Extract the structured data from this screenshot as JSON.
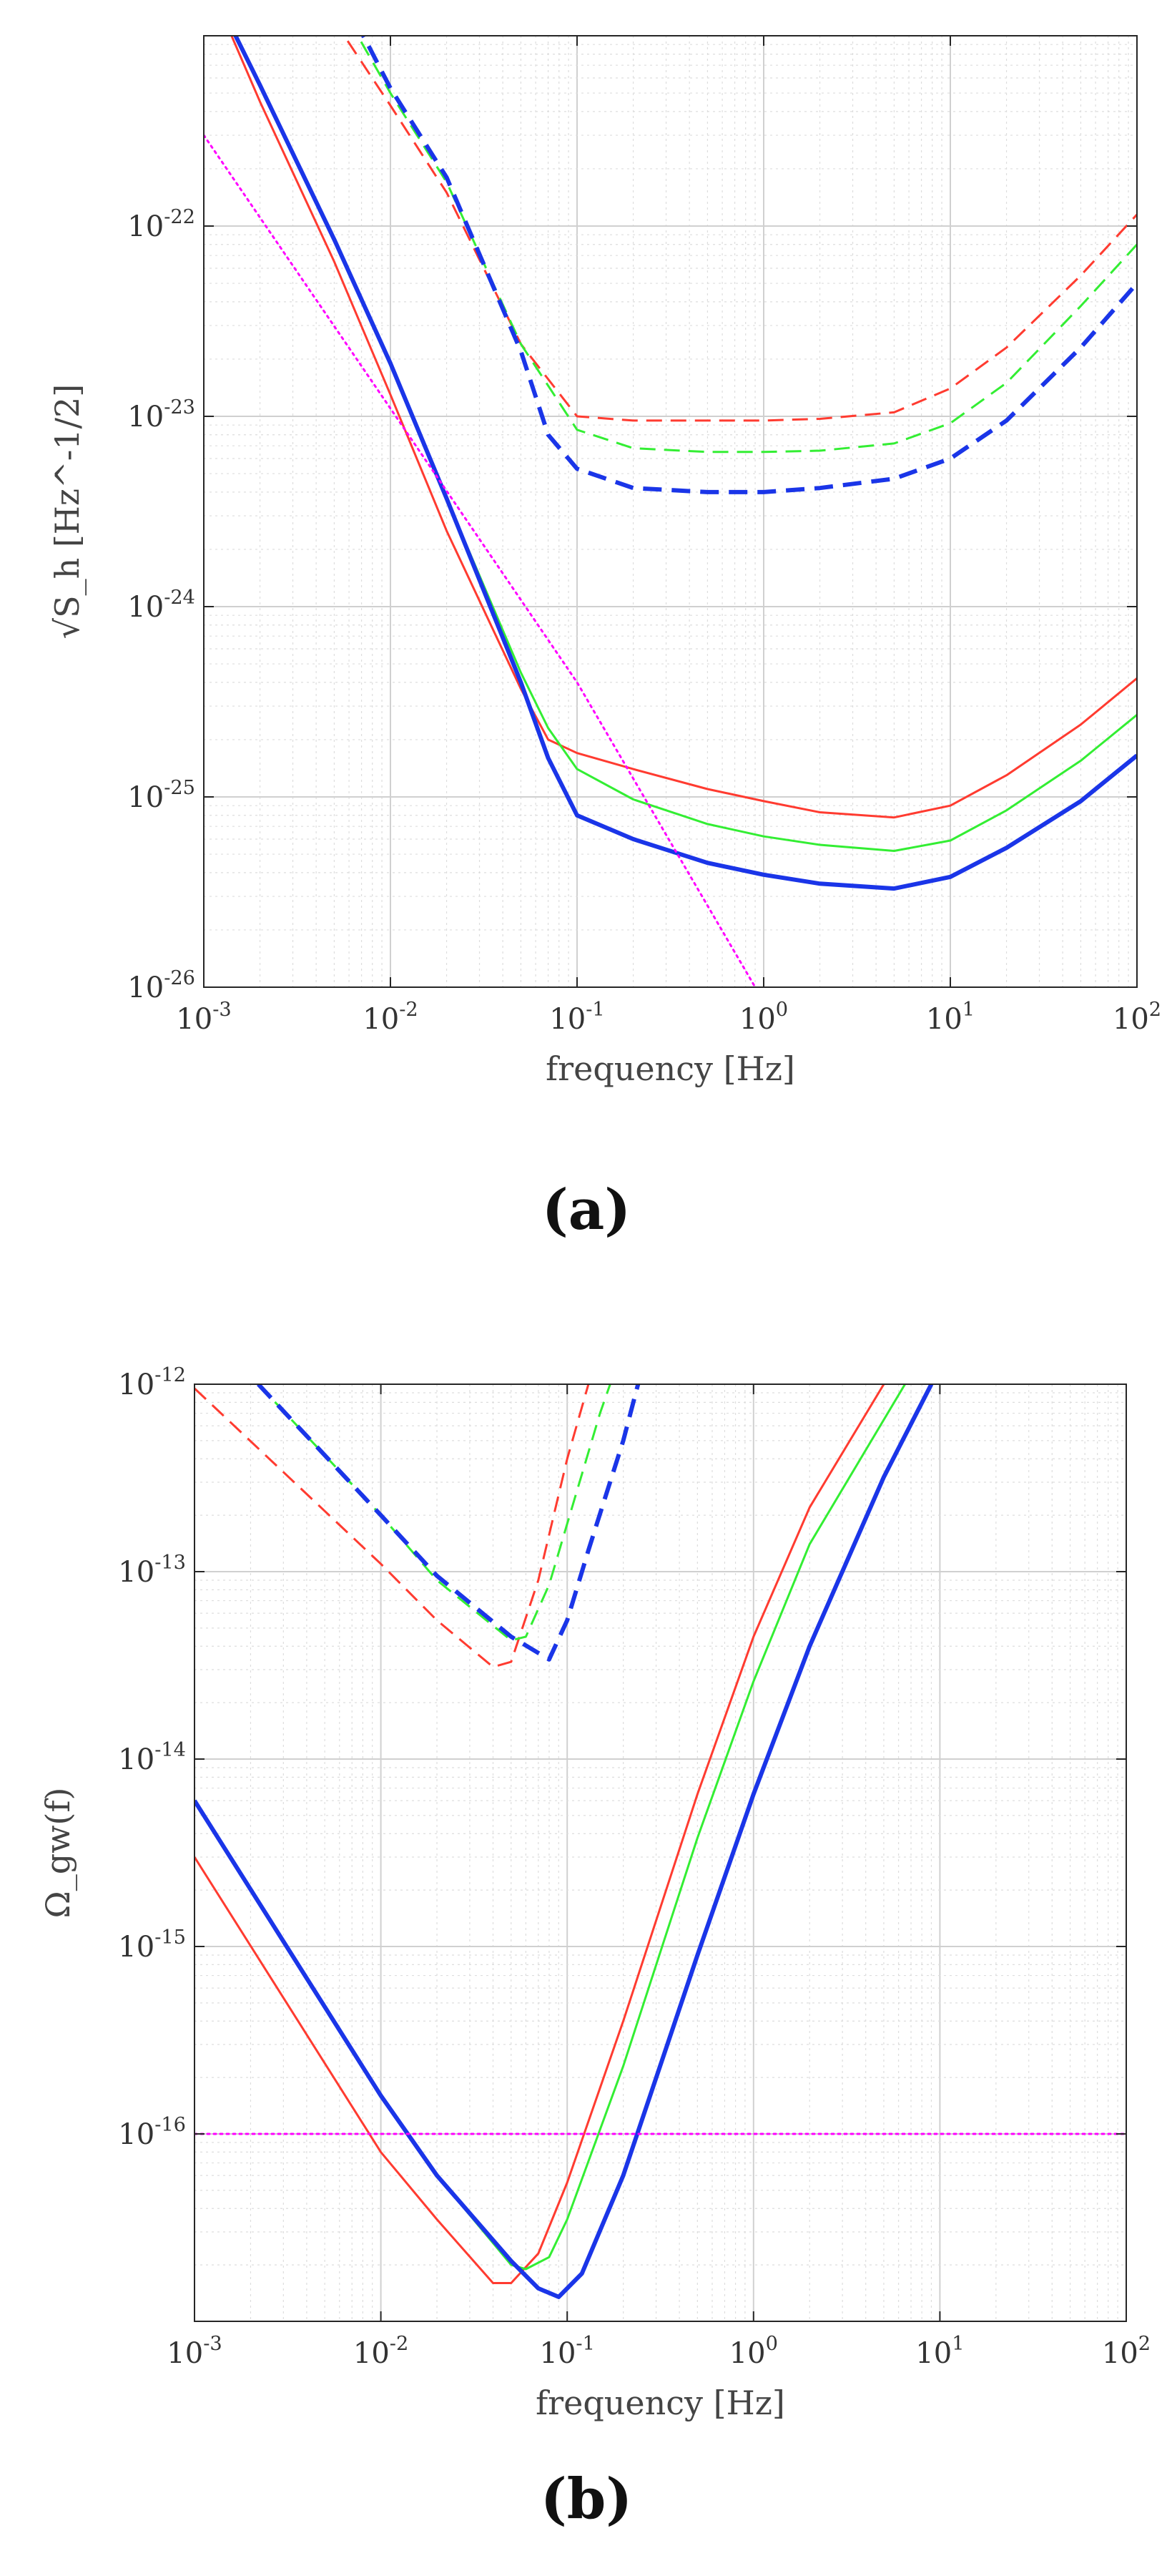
{
  "figure": {
    "panel_labels": [
      "(a)",
      "(b)"
    ]
  },
  "chart_data": [
    {
      "type": "line",
      "panel": "(a)",
      "title": "",
      "xlabel": "frequency [Hz]",
      "ylabel": "√S_h [Hz^-1/2]",
      "xscale": "log",
      "yscale": "log",
      "xlim": [
        0.001,
        100
      ],
      "ylim": [
        1e-26,
        1e-21
      ],
      "grid": true,
      "x_ticks": [
        {
          "base": "10",
          "exp": "-3"
        },
        {
          "base": "10",
          "exp": "-2"
        },
        {
          "base": "10",
          "exp": "-1"
        },
        {
          "base": "10",
          "exp": "0"
        },
        {
          "base": "10",
          "exp": "1"
        },
        {
          "base": "10",
          "exp": "2"
        }
      ],
      "y_ticks": [
        {
          "base": "10",
          "exp": "-26"
        },
        {
          "base": "10",
          "exp": "-25"
        },
        {
          "base": "10",
          "exp": "-24"
        },
        {
          "base": "10",
          "exp": "-23"
        },
        {
          "base": "10",
          "exp": "-22"
        }
      ],
      "series": [
        {
          "name": "red dashed",
          "color": "#ff3b30",
          "style": "dashed",
          "weight": "thin",
          "x": [
            0.005,
            0.01,
            0.02,
            0.05,
            0.1,
            0.2,
            0.5,
            1,
            2,
            5,
            10,
            20,
            50,
            100
          ],
          "y": [
            1.2e-21,
            4.3e-22,
            1.5e-22,
            2.4e-23,
            1e-23,
            9.5e-24,
            9.5e-24,
            9.5e-24,
            9.7e-24,
            1.05e-23,
            1.4e-23,
            2.3e-23,
            5.5e-23,
            1.15e-22
          ]
        },
        {
          "name": "green dashed",
          "color": "#33ee33",
          "style": "dashed",
          "weight": "thin",
          "x": [
            0.006,
            0.01,
            0.02,
            0.05,
            0.1,
            0.2,
            0.5,
            1,
            2,
            5,
            10,
            20,
            50,
            100
          ],
          "y": [
            1.2e-21,
            5e-22,
            1.7e-22,
            2.4e-23,
            8.5e-24,
            6.8e-24,
            6.5e-24,
            6.5e-24,
            6.6e-24,
            7.2e-24,
            9.2e-24,
            1.5e-23,
            3.8e-23,
            8e-23
          ]
        },
        {
          "name": "blue dashed",
          "color": "#1a35e8",
          "style": "dashed",
          "weight": "thick",
          "x": [
            0.0065,
            0.01,
            0.02,
            0.05,
            0.07,
            0.1,
            0.2,
            0.5,
            1,
            2,
            5,
            10,
            20,
            50,
            100
          ],
          "y": [
            1.2e-21,
            5.3e-22,
            1.8e-22,
            2.2e-23,
            8e-24,
            5.3e-24,
            4.2e-24,
            4e-24,
            4e-24,
            4.2e-24,
            4.7e-24,
            6e-24,
            9.5e-24,
            2.3e-23,
            5e-23
          ]
        },
        {
          "name": "red solid",
          "color": "#ff3b30",
          "style": "solid",
          "weight": "thin",
          "x": [
            0.0013,
            0.002,
            0.005,
            0.01,
            0.02,
            0.05,
            0.07,
            0.1,
            0.2,
            0.5,
            1,
            2,
            5,
            10,
            20,
            50,
            100
          ],
          "y": [
            1.2e-21,
            4.5e-22,
            6.5e-23,
            1.3e-23,
            2.5e-24,
            3.7e-25,
            2e-25,
            1.7e-25,
            1.4e-25,
            1.1e-25,
            9.5e-26,
            8.3e-26,
            7.8e-26,
            9e-26,
            1.3e-25,
            2.4e-25,
            4.2e-25
          ]
        },
        {
          "name": "green solid",
          "color": "#33ee33",
          "style": "solid",
          "weight": "thin",
          "x": [
            0.00135,
            0.002,
            0.005,
            0.01,
            0.02,
            0.05,
            0.07,
            0.1,
            0.2,
            0.5,
            1,
            2,
            5,
            10,
            20,
            50,
            100
          ],
          "y": [
            1.2e-21,
            5.5e-22,
            8.5e-23,
            1.9e-23,
            3.7e-24,
            4.5e-25,
            2.3e-25,
            1.4e-25,
            9.7e-26,
            7.2e-26,
            6.2e-26,
            5.6e-26,
            5.2e-26,
            5.9e-26,
            8.5e-26,
            1.55e-25,
            2.7e-25
          ]
        },
        {
          "name": "blue solid",
          "color": "#1a35e8",
          "style": "solid",
          "weight": "thick",
          "x": [
            0.00135,
            0.002,
            0.005,
            0.01,
            0.02,
            0.05,
            0.07,
            0.1,
            0.2,
            0.5,
            1,
            2,
            5,
            10,
            20,
            50,
            100
          ],
          "y": [
            1.2e-21,
            5.5e-22,
            8.5e-23,
            1.9e-23,
            3.7e-24,
            4e-25,
            1.6e-25,
            8e-26,
            6e-26,
            4.5e-26,
            3.9e-26,
            3.5e-26,
            3.3e-26,
            3.8e-26,
            5.4e-26,
            9.5e-26,
            1.65e-25
          ]
        },
        {
          "name": "magenta dotted",
          "color": "#ff00ff",
          "style": "dotted",
          "weight": "thin",
          "x": [
            0.001,
            0.01,
            0.1,
            0.9
          ],
          "y": [
            3e-22,
            1.1e-23,
            4e-25,
            1e-26
          ]
        }
      ]
    },
    {
      "type": "line",
      "panel": "(b)",
      "title": "",
      "xlabel": "frequency [Hz]",
      "ylabel": "Ω_gw(f)",
      "xscale": "log",
      "yscale": "log",
      "xlim": [
        0.001,
        100
      ],
      "ylim": [
        1e-17,
        1e-12
      ],
      "grid": true,
      "x_ticks": [
        {
          "base": "10",
          "exp": "-3"
        },
        {
          "base": "10",
          "exp": "-2"
        },
        {
          "base": "10",
          "exp": "-1"
        },
        {
          "base": "10",
          "exp": "0"
        },
        {
          "base": "10",
          "exp": "1"
        },
        {
          "base": "10",
          "exp": "2"
        }
      ],
      "y_ticks": [
        {
          "base": "10",
          "exp": "-16"
        },
        {
          "base": "10",
          "exp": "-15"
        },
        {
          "base": "10",
          "exp": "-14"
        },
        {
          "base": "10",
          "exp": "-13"
        },
        {
          "base": "10",
          "exp": "-12"
        }
      ],
      "series": [
        {
          "name": "red dashed",
          "color": "#ff3b30",
          "style": "dashed",
          "weight": "thin",
          "x": [
            0.001,
            0.01,
            0.02,
            0.04,
            0.05,
            0.07,
            0.1,
            0.13
          ],
          "y": [
            9.5e-13,
            1.1e-13,
            5.5e-14,
            3.1e-14,
            3.3e-14,
            9e-14,
            4e-13,
            1e-12
          ]
        },
        {
          "name": "green dashed",
          "color": "#33ee33",
          "style": "dashed",
          "weight": "thin",
          "x": [
            0.0022,
            0.01,
            0.02,
            0.05,
            0.06,
            0.08,
            0.1,
            0.15,
            0.17
          ],
          "y": [
            1e-12,
            2e-13,
            9e-14,
            4.3e-14,
            4.5e-14,
            8.5e-14,
            1.8e-13,
            7e-13,
            1e-12
          ]
        },
        {
          "name": "blue dashed",
          "color": "#1a35e8",
          "style": "dashed",
          "weight": "thick",
          "x": [
            0.0022,
            0.01,
            0.02,
            0.05,
            0.08,
            0.1,
            0.13,
            0.2,
            0.24
          ],
          "y": [
            1e-12,
            2e-13,
            9.5e-14,
            4.5e-14,
            3.4e-14,
            5.5e-14,
            1.3e-13,
            5e-13,
            1e-12
          ]
        },
        {
          "name": "red solid",
          "color": "#ff3b30",
          "style": "solid",
          "weight": "thin",
          "x": [
            0.001,
            0.01,
            0.02,
            0.04,
            0.05,
            0.07,
            0.1,
            0.2,
            0.5,
            1,
            2,
            5
          ],
          "y": [
            3e-15,
            8e-17,
            3.5e-17,
            1.6e-17,
            1.6e-17,
            2.3e-17,
            5.5e-17,
            4e-16,
            6.5e-15,
            4.5e-14,
            2.2e-13,
            1e-12
          ]
        },
        {
          "name": "green solid",
          "color": "#33ee33",
          "style": "solid",
          "weight": "thin",
          "x": [
            0.001,
            0.01,
            0.02,
            0.05,
            0.06,
            0.08,
            0.1,
            0.2,
            0.5,
            1,
            2,
            6.5
          ],
          "y": [
            6e-15,
            1.6e-16,
            6e-17,
            2e-17,
            1.9e-17,
            2.2e-17,
            3.5e-17,
            2.3e-16,
            3.8e-15,
            2.6e-14,
            1.4e-13,
            1e-12
          ]
        },
        {
          "name": "blue solid",
          "color": "#1a35e8",
          "style": "solid",
          "weight": "thick",
          "x": [
            0.001,
            0.01,
            0.02,
            0.05,
            0.07,
            0.09,
            0.12,
            0.2,
            0.5,
            1,
            2,
            5,
            9
          ],
          "y": [
            6e-15,
            1.6e-16,
            6e-17,
            2.1e-17,
            1.5e-17,
            1.35e-17,
            1.8e-17,
            6e-17,
            9e-16,
            6.5e-15,
            4e-14,
            3.2e-13,
            1e-12
          ]
        },
        {
          "name": "magenta dotted",
          "color": "#ff00ff",
          "style": "dotted",
          "weight": "thin",
          "x": [
            0.001,
            100
          ],
          "y": [
            1e-16,
            1e-16
          ]
        }
      ]
    }
  ]
}
